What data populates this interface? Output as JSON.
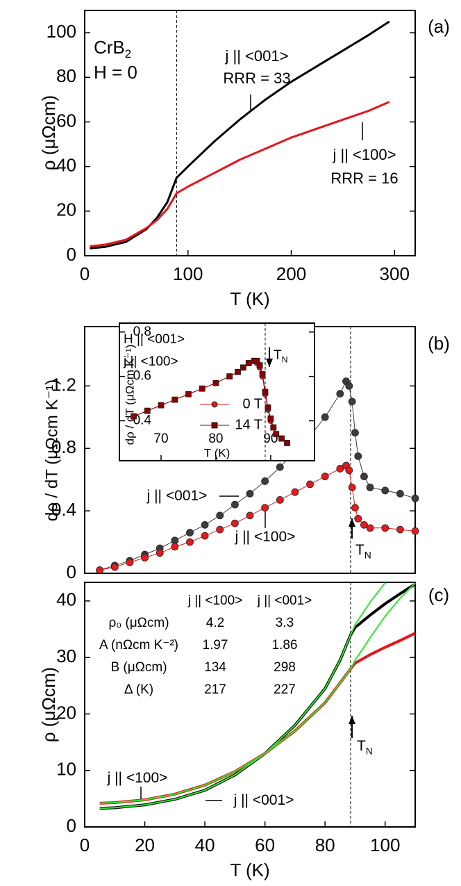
{
  "chart_data": [
    {
      "type": "line",
      "panel_label": "(a)",
      "x_label": "T (K)",
      "y_label": "ρ (μΩcm)",
      "xlim": [
        0,
        320
      ],
      "ylim": [
        0,
        110
      ],
      "xticks": [
        0,
        100,
        200,
        300
      ],
      "yticks": [
        0,
        20,
        40,
        60,
        80,
        100
      ],
      "vline": 89,
      "annotations": [
        {
          "text": "CrB",
          "sub": "2"
        },
        {
          "text": "H = 0"
        },
        {
          "text": "j || <001>"
        },
        {
          "text": "RRR = 33"
        },
        {
          "text": "j || <100>"
        },
        {
          "text": "RRR = 16"
        }
      ],
      "series": [
        {
          "color": "#000000",
          "x": [
            5,
            20,
            40,
            60,
            70,
            80,
            89,
            100,
            125,
            150,
            175,
            200,
            225,
            250,
            275,
            295
          ],
          "values": [
            3.3,
            4,
            6.2,
            12,
            17,
            24,
            35,
            40,
            51,
            61,
            70,
            78,
            85,
            92,
            99,
            105
          ]
        },
        {
          "color": "#e8141b",
          "x": [
            5,
            20,
            40,
            60,
            70,
            80,
            89,
            100,
            125,
            150,
            175,
            200,
            225,
            250,
            275,
            295
          ],
          "values": [
            4.2,
            5,
            7.2,
            12.5,
            16,
            21,
            28,
            31,
            37,
            43,
            48,
            53,
            57,
            61,
            65,
            69
          ]
        }
      ]
    },
    {
      "type": "scatter",
      "panel_label": "(b)",
      "y_label": "dρ / dT (μΩcm K⁻¹)",
      "xlim": [
        0,
        110
      ],
      "ylim": [
        0,
        1.58
      ],
      "yticks": [
        0,
        0.4,
        0.8,
        1.2
      ],
      "vline": 88.5,
      "annotations": [
        {
          "text": "j || <001>"
        },
        {
          "text": "j || <100>"
        },
        {
          "text": "T",
          "sub": "N"
        }
      ],
      "series": [
        {
          "color": "#3c3c3c",
          "marker": "circle",
          "x": [
            5,
            10,
            15,
            20,
            25,
            30,
            35,
            40,
            45,
            50,
            55,
            60,
            65,
            70,
            75,
            80,
            85,
            87,
            88,
            89,
            90,
            91,
            93,
            95,
            100,
            105,
            110
          ],
          "values": [
            0.02,
            0.05,
            0.08,
            0.12,
            0.16,
            0.21,
            0.26,
            0.31,
            0.37,
            0.44,
            0.51,
            0.59,
            0.68,
            0.78,
            0.88,
            1.0,
            1.15,
            1.23,
            1.2,
            1.1,
            0.9,
            0.75,
            0.62,
            0.55,
            0.53,
            0.51,
            0.48
          ]
        },
        {
          "color": "#e41a1c",
          "marker": "circle",
          "x": [
            5,
            10,
            15,
            20,
            25,
            30,
            35,
            40,
            45,
            50,
            55,
            60,
            65,
            70,
            75,
            80,
            85,
            87,
            88,
            89,
            90,
            91,
            93,
            95,
            100,
            105,
            110
          ],
          "values": [
            0.02,
            0.04,
            0.07,
            0.1,
            0.13,
            0.17,
            0.2,
            0.24,
            0.28,
            0.32,
            0.37,
            0.42,
            0.47,
            0.52,
            0.57,
            0.62,
            0.67,
            0.69,
            0.66,
            0.55,
            0.42,
            0.35,
            0.31,
            0.29,
            0.29,
            0.28,
            0.27
          ]
        }
      ]
    },
    {
      "type": "scatter",
      "x_label": "T (K)",
      "y_label": "dρ / dT (μΩcm K⁻¹)",
      "xlim": [
        62.4,
        98
      ],
      "ylim": [
        0.22,
        0.84
      ],
      "xticks": [
        70,
        80,
        90
      ],
      "yticks": [
        0.4,
        0.6,
        0.8
      ],
      "vline": 89,
      "annotations": [
        {
          "text": "H || <001>"
        },
        {
          "text": "j || <100>"
        },
        {
          "text": "T",
          "sub": "N"
        }
      ],
      "series": [
        {
          "name": "0 T",
          "color": "#e41a1c",
          "marker": "circle",
          "x": [
            65,
            67.5,
            70,
            72.5,
            75,
            77.5,
            80,
            82.5,
            84,
            85,
            86,
            87,
            87.5,
            88,
            88.5,
            89,
            89.5,
            90,
            90.5,
            91,
            92,
            93
          ],
          "values": [
            0.42,
            0.445,
            0.47,
            0.495,
            0.52,
            0.545,
            0.57,
            0.6,
            0.62,
            0.64,
            0.66,
            0.67,
            0.66,
            0.64,
            0.6,
            0.52,
            0.45,
            0.4,
            0.37,
            0.34,
            0.32,
            0.3
          ]
        },
        {
          "name": "14 T",
          "color": "#8b0000",
          "marker": "square",
          "x": [
            65,
            67.5,
            70,
            72.5,
            75,
            77.5,
            80,
            82.5,
            84,
            85,
            86,
            87,
            87.5,
            88,
            88.5,
            89,
            89.5,
            90,
            90.5,
            91,
            92,
            93
          ],
          "values": [
            0.42,
            0.445,
            0.47,
            0.495,
            0.52,
            0.545,
            0.57,
            0.6,
            0.62,
            0.64,
            0.66,
            0.67,
            0.67,
            0.65,
            0.61,
            0.53,
            0.46,
            0.41,
            0.37,
            0.34,
            0.32,
            0.3
          ]
        }
      ]
    },
    {
      "type": "line",
      "panel_label": "(c)",
      "x_label": "T (K)",
      "y_label": "ρ (μΩcm)",
      "xlim": [
        0,
        110
      ],
      "ylim": [
        0,
        43.3
      ],
      "xticks": [
        0,
        20,
        40,
        60,
        80,
        100
      ],
      "yticks": [
        0,
        10,
        20,
        30,
        40
      ],
      "vline": 88.5,
      "annotations": [
        {
          "text": "j || <100>"
        },
        {
          "text": "j || <001>"
        },
        {
          "text": "T",
          "sub": "N"
        }
      ],
      "table": {
        "columns": [
          "j || <100>",
          "j || <001>"
        ],
        "rows": [
          [
            "ρ₀ (μΩcm)",
            "4.2",
            "3.3"
          ],
          [
            "A (nΩcm K⁻²)",
            "1.97",
            "1.86"
          ],
          [
            "B (μΩcm)",
            "134",
            "298"
          ],
          [
            "Δ (K)",
            "217",
            "227"
          ]
        ]
      },
      "series": [
        {
          "color": "#000000",
          "x": [
            5,
            10,
            20,
            30,
            40,
            50,
            60,
            70,
            80,
            85,
            88.5,
            90,
            95,
            100,
            105,
            110
          ],
          "values": [
            3.3,
            3.4,
            3.9,
            4.9,
            6.5,
            9.2,
            13,
            18,
            24.5,
            29.5,
            34,
            35.3,
            37.5,
            39.5,
            41.3,
            43
          ]
        },
        {
          "color": "#e8141b",
          "x": [
            5,
            10,
            20,
            30,
            40,
            50,
            60,
            70,
            80,
            85,
            88.5,
            90,
            95,
            100,
            105,
            110
          ],
          "values": [
            4.2,
            4.3,
            4.8,
            5.8,
            7.4,
            9.8,
            13,
            17,
            22,
            25.5,
            28,
            29,
            30.5,
            31.8,
            33,
            34.3
          ]
        },
        {
          "color": "#2ee82e",
          "x": [
            5,
            10,
            20,
            30,
            40,
            50,
            60,
            70,
            80,
            85,
            88.5,
            90,
            95,
            100
          ],
          "values": [
            3.3,
            3.4,
            3.9,
            4.9,
            6.5,
            9.2,
            13,
            18,
            24.5,
            29.5,
            34,
            35.8,
            39.8,
            43.2
          ]
        },
        {
          "color": "#2ee82e",
          "x": [
            5,
            10,
            20,
            30,
            40,
            50,
            60,
            70,
            80,
            85,
            88.5,
            90,
            95,
            100,
            105,
            110
          ],
          "values": [
            4.2,
            4.3,
            4.8,
            5.8,
            7.4,
            9.8,
            13,
            17,
            22,
            25.5,
            28,
            29.5,
            33.5,
            37.3,
            40.5,
            43.2
          ]
        }
      ]
    }
  ]
}
